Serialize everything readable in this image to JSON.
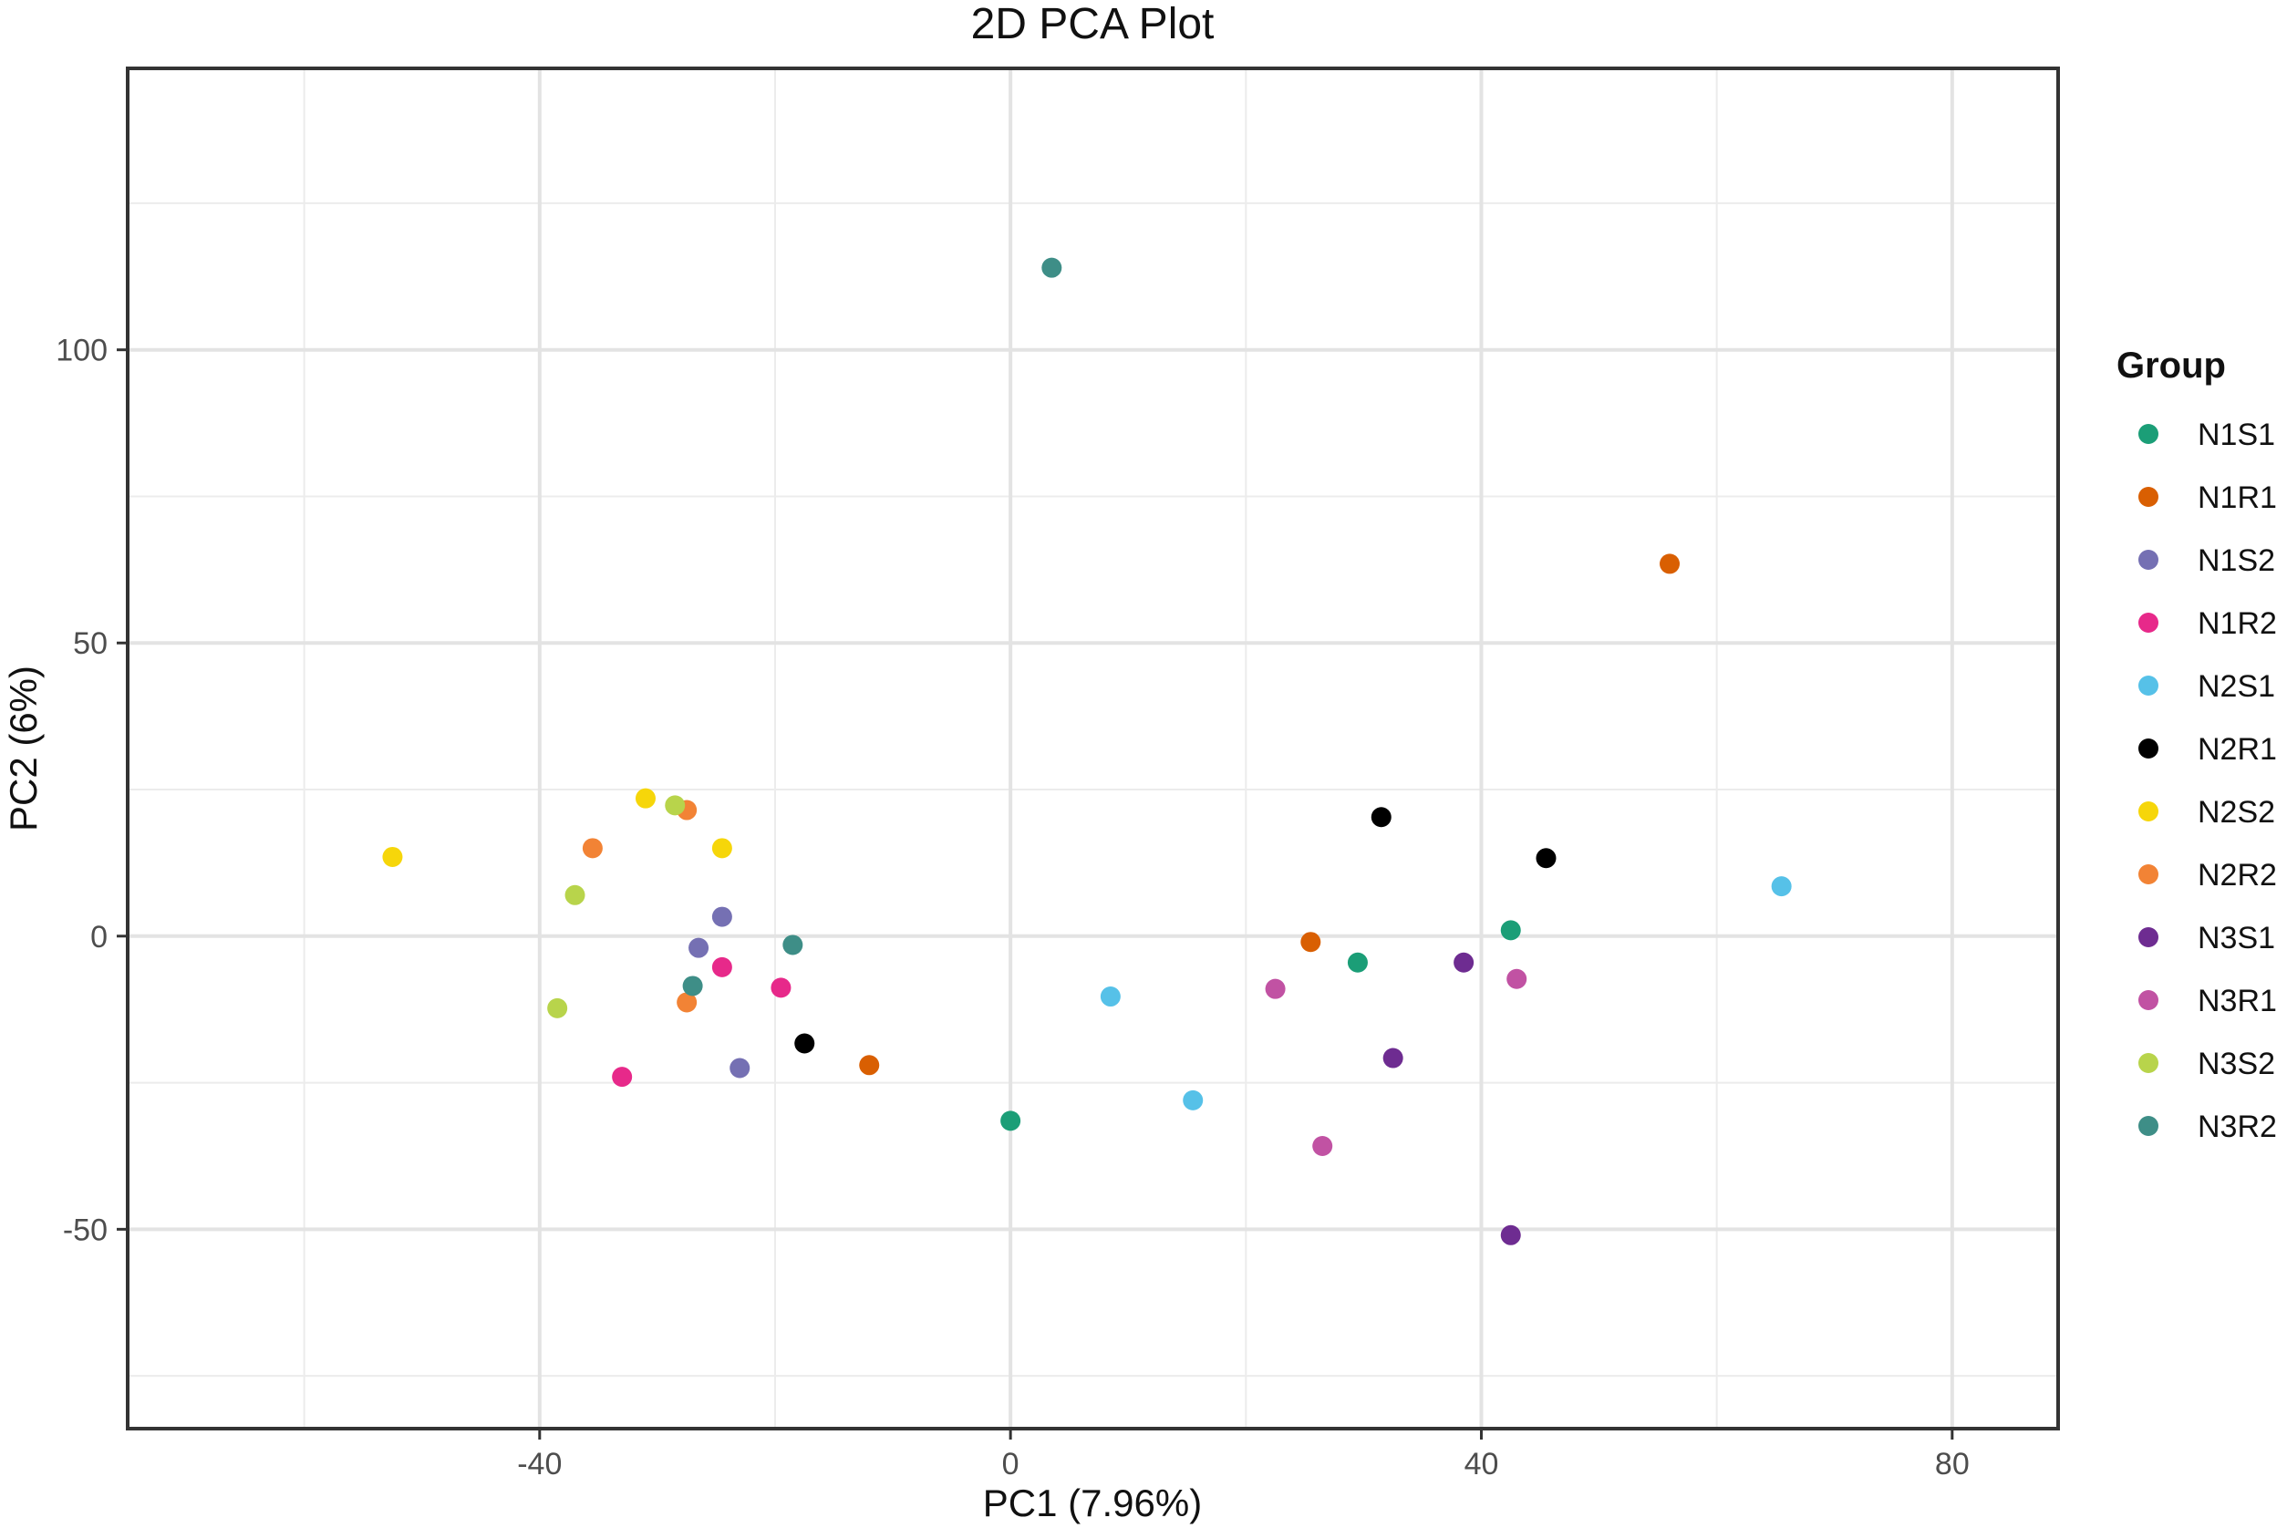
{
  "chart_data": {
    "type": "scatter",
    "title": "2D PCA Plot",
    "xlabel": "PC1 (7.96%)",
    "ylabel": "PC2 (6%)",
    "xlim": [
      -75,
      89
    ],
    "ylim": [
      -84,
      148
    ],
    "x_ticks": [
      -40,
      0,
      40,
      80
    ],
    "y_ticks": [
      -50,
      0,
      50,
      100
    ],
    "x_tick_labels": [
      "-40",
      "0",
      "40",
      "80"
    ],
    "y_tick_labels": [
      "-50",
      "0",
      "50",
      "100"
    ],
    "grid": true,
    "legend": {
      "title": "Group",
      "position": "right"
    },
    "series": [
      {
        "name": "N1S1",
        "color": "#1b9e77",
        "points": [
          [
            42.5,
            1
          ],
          [
            29.5,
            -4.5
          ],
          [
            0,
            -31.5
          ]
        ]
      },
      {
        "name": "N1R1",
        "color": "#d95f02",
        "points": [
          [
            56,
            63.5
          ],
          [
            25.5,
            -1
          ],
          [
            -12,
            -22
          ]
        ]
      },
      {
        "name": "N1S2",
        "color": "#7570b3",
        "points": [
          [
            -24.5,
            3.3
          ],
          [
            -26.5,
            -2
          ],
          [
            -23,
            -22.5
          ]
        ]
      },
      {
        "name": "N1R2",
        "color": "#e7298a",
        "points": [
          [
            -24.5,
            -5.3
          ],
          [
            -19.5,
            -8.8
          ],
          [
            -33,
            -24
          ]
        ]
      },
      {
        "name": "N2S1",
        "color": "#56c1e8",
        "points": [
          [
            65.5,
            8.5
          ],
          [
            8.5,
            -10.3
          ],
          [
            15.5,
            -28
          ]
        ]
      },
      {
        "name": "N2R1",
        "color": "#000000",
        "points": [
          [
            31.5,
            20.3
          ],
          [
            45.5,
            13.3
          ],
          [
            -17.5,
            -18.3
          ]
        ]
      },
      {
        "name": "N2S2",
        "color": "#f6d60a",
        "points": [
          [
            -52.5,
            13.5
          ],
          [
            -31,
            23.5
          ],
          [
            -24.5,
            15
          ]
        ]
      },
      {
        "name": "N2R2",
        "color": "#f28335",
        "points": [
          [
            -27.5,
            21.5
          ],
          [
            -35.5,
            15
          ],
          [
            -27.5,
            -11.3
          ]
        ]
      },
      {
        "name": "N3S1",
        "color": "#6e2c91",
        "points": [
          [
            38.5,
            -4.5
          ],
          [
            32.5,
            -20.8
          ],
          [
            42.5,
            -51
          ]
        ]
      },
      {
        "name": "N3R1",
        "color": "#c152a3",
        "points": [
          [
            43,
            -7.3
          ],
          [
            22.5,
            -9
          ],
          [
            26.5,
            -35.8
          ]
        ]
      },
      {
        "name": "N3S2",
        "color": "#b8d44b",
        "points": [
          [
            -28.5,
            22.3
          ],
          [
            -37,
            7
          ],
          [
            -38.5,
            -12.3
          ]
        ]
      },
      {
        "name": "N3R2",
        "color": "#3e8e87",
        "points": [
          [
            3.5,
            114
          ],
          [
            -18.5,
            -1.5
          ],
          [
            -27,
            -8.5
          ]
        ]
      }
    ]
  }
}
